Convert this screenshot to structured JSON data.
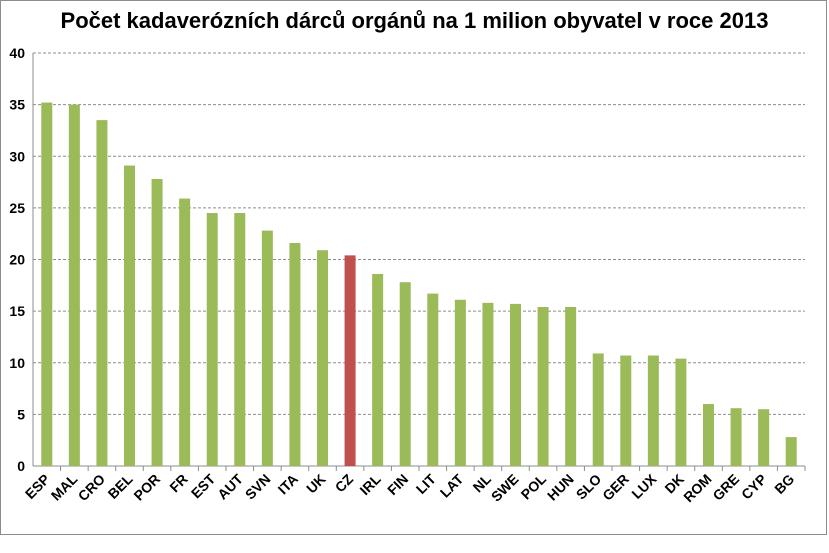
{
  "chart_data": {
    "type": "bar",
    "title": "Počet kadaverózních dárců orgánů na 1 milion obyvatel v roce 2013",
    "xlabel": "",
    "ylabel": "",
    "ylim": [
      0,
      40
    ],
    "yticks": [
      0,
      5,
      10,
      15,
      20,
      25,
      30,
      35,
      40
    ],
    "grid": "horizontal dashed",
    "legend": "none",
    "categories": [
      "ESP",
      "MAL",
      "CRO",
      "BEL",
      "POR",
      "FR",
      "EST",
      "AUT",
      "SVN",
      "ITA",
      "UK",
      "CZ",
      "IRL",
      "FIN",
      "LIT",
      "LAT",
      "NL",
      "SWE",
      "POL",
      "HUN",
      "SLO",
      "GER",
      "LUX",
      "DK",
      "ROM",
      "GRE",
      "CYP",
      "BG"
    ],
    "values": [
      35.2,
      35.0,
      33.5,
      29.1,
      27.8,
      25.9,
      24.5,
      24.5,
      22.8,
      21.6,
      20.9,
      20.4,
      18.6,
      17.8,
      16.7,
      16.1,
      15.8,
      15.7,
      15.4,
      15.4,
      10.9,
      10.7,
      10.7,
      10.4,
      6.0,
      5.6,
      5.5,
      2.8
    ],
    "colors": {
      "default": "#9bbb59",
      "highlight": "#c0504d",
      "highlight_category": "CZ",
      "grid": "#8c8c8c"
    }
  }
}
